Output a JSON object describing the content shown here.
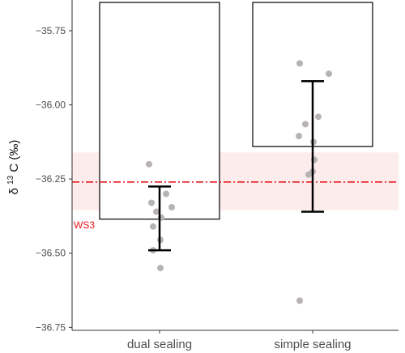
{
  "chart_data": {
    "type": "bar",
    "title": "",
    "xlabel": "",
    "ylabel_parts": {
      "delta": "δ",
      "sup": "13",
      "rest": "C (‰)"
    },
    "ylim": [
      -36.76,
      -35.66
    ],
    "yticks": [
      -35.75,
      -36.0,
      -36.25,
      -36.5,
      -36.75
    ],
    "ytick_labels": [
      "−35.75",
      "−36.00",
      "−36.25",
      "−36.50",
      "−36.75"
    ],
    "categories": [
      "dual sealing",
      "simple sealing"
    ],
    "bars": [
      {
        "category": "dual sealing",
        "value": -36.385,
        "err_low": -36.49,
        "err_high": -36.275
      },
      {
        "category": "simple sealing",
        "value": -36.14,
        "err_low": -36.36,
        "err_high": -35.92
      }
    ],
    "points": [
      {
        "category": "dual sealing",
        "values": [
          -36.2,
          -36.3,
          -36.33,
          -36.345,
          -36.36,
          -36.38,
          -36.41,
          -36.455,
          -36.49,
          -36.55
        ]
      },
      {
        "category": "simple sealing",
        "values": [
          -35.86,
          -35.895,
          -36.04,
          -36.065,
          -36.105,
          -36.125,
          -36.185,
          -36.225,
          -36.235,
          -36.66
        ]
      }
    ],
    "reference": {
      "label": "WS3",
      "value": -36.26,
      "band": [
        -36.355,
        -36.16
      ],
      "color": "#e8141c",
      "band_color": "#fdecec"
    },
    "colors": {
      "bar_fill": "#ffffff",
      "bar_edge": "#000000",
      "point": "#b8b3b3",
      "errorbar": "#000000",
      "axis": "#333333"
    }
  }
}
